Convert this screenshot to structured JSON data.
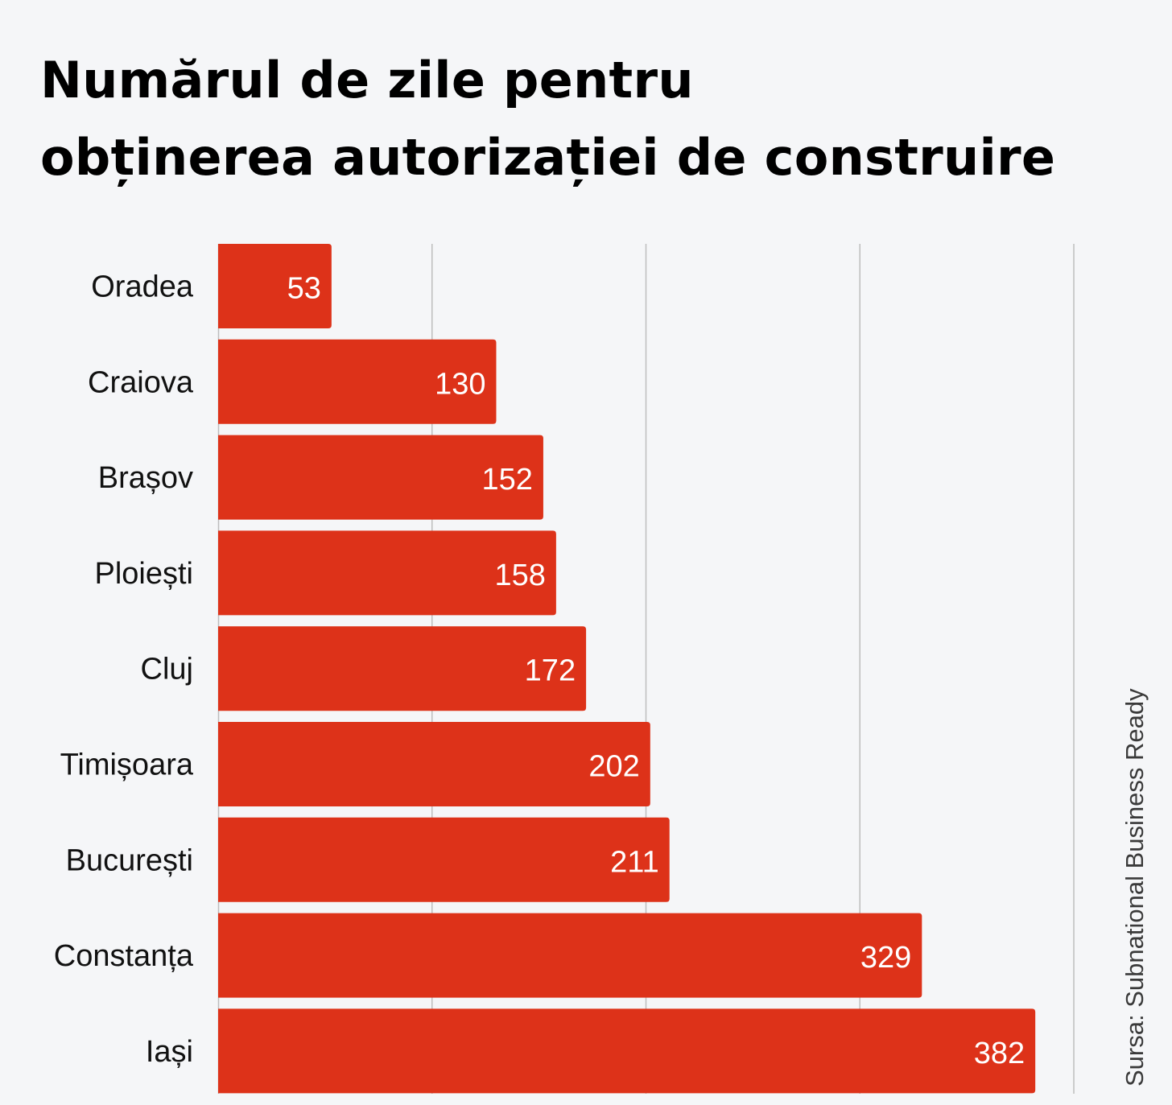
{
  "title_lines": [
    "Numărul de zile pentru",
    "obținerea autorizației de construire"
  ],
  "source": "Sursa: Subnational Business Ready",
  "colors": {
    "bar": "#dd3219",
    "grid": "#bdbdbd",
    "background": "#f5f6f8"
  },
  "chart_data": {
    "type": "bar",
    "orientation": "horizontal",
    "title": "Numărul de zile pentru obținerea autorizației de construire",
    "categories": [
      "Oradea",
      "Craiova",
      "Brașov",
      "Ploiești",
      "Cluj",
      "Timișoara",
      "București",
      "Constanța",
      "Iași"
    ],
    "values": [
      53,
      130,
      152,
      158,
      172,
      202,
      211,
      329,
      382
    ],
    "xlim": [
      0,
      400
    ],
    "gridlines": [
      100,
      200,
      300,
      400
    ],
    "grid": true,
    "legend": "none",
    "data_labels": true
  }
}
